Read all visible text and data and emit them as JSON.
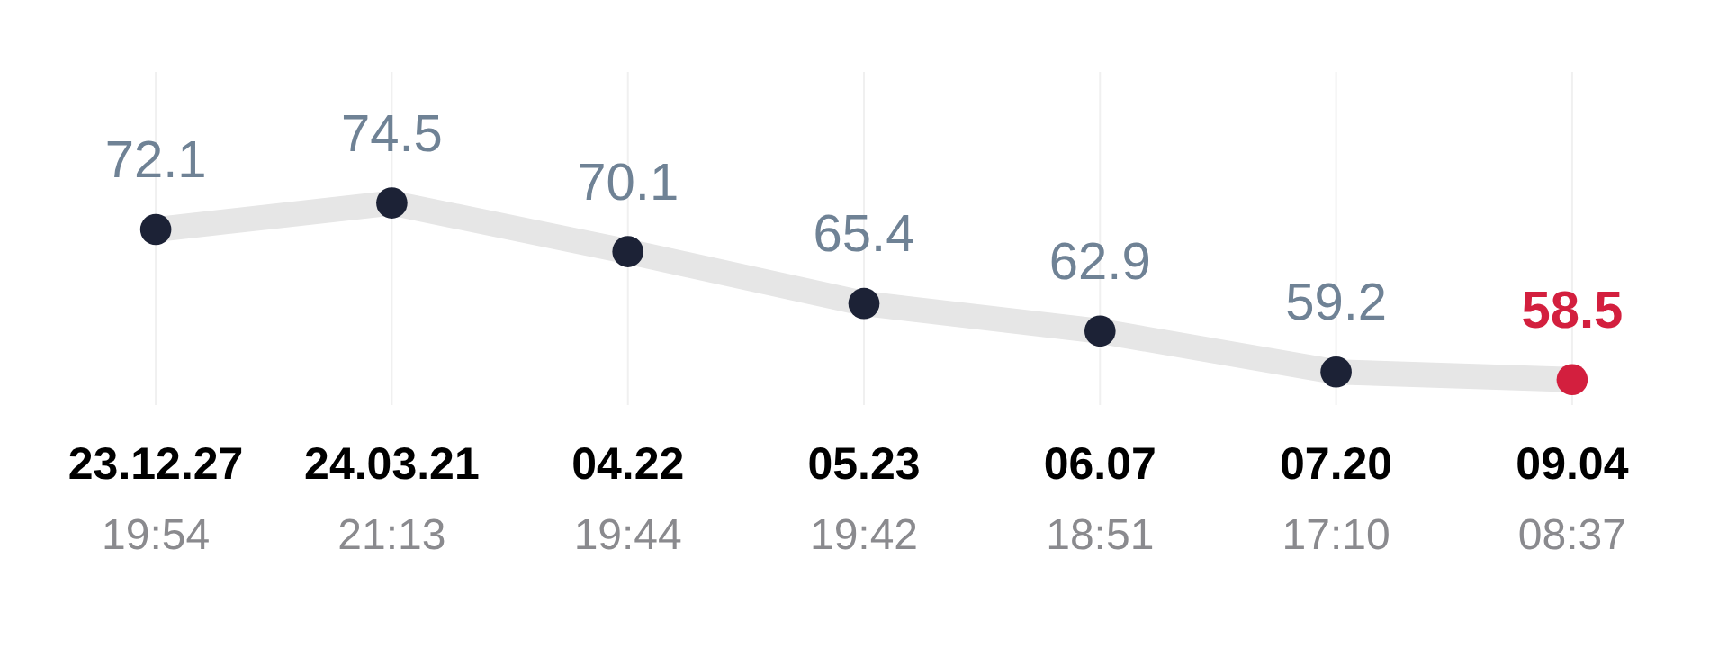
{
  "chart_data": {
    "type": "line",
    "categories": [
      "23.12.27\n19:54",
      "24.03.21\n21:13",
      "04.22\n19:44",
      "05.23\n19:42",
      "06.07\n18:51",
      "07.20\n17:10",
      "09.04\n08:37"
    ],
    "series": [
      {
        "color": "#e6e6e6",
        "values": [
          72.1,
          74.5,
          70.1,
          65.4,
          62.9,
          59.2,
          58.5
        ],
        "colors": [
          "#1c2236",
          "#1c2236",
          "#1c2236",
          "#1c2236",
          "#1c2236",
          "#1c2236",
          "#d31f3e"
        ]
      }
    ],
    "data_labels": true,
    "marker": "circle",
    "grid": "x",
    "tick_labels": "x",
    "line_style": "solid"
  }
}
